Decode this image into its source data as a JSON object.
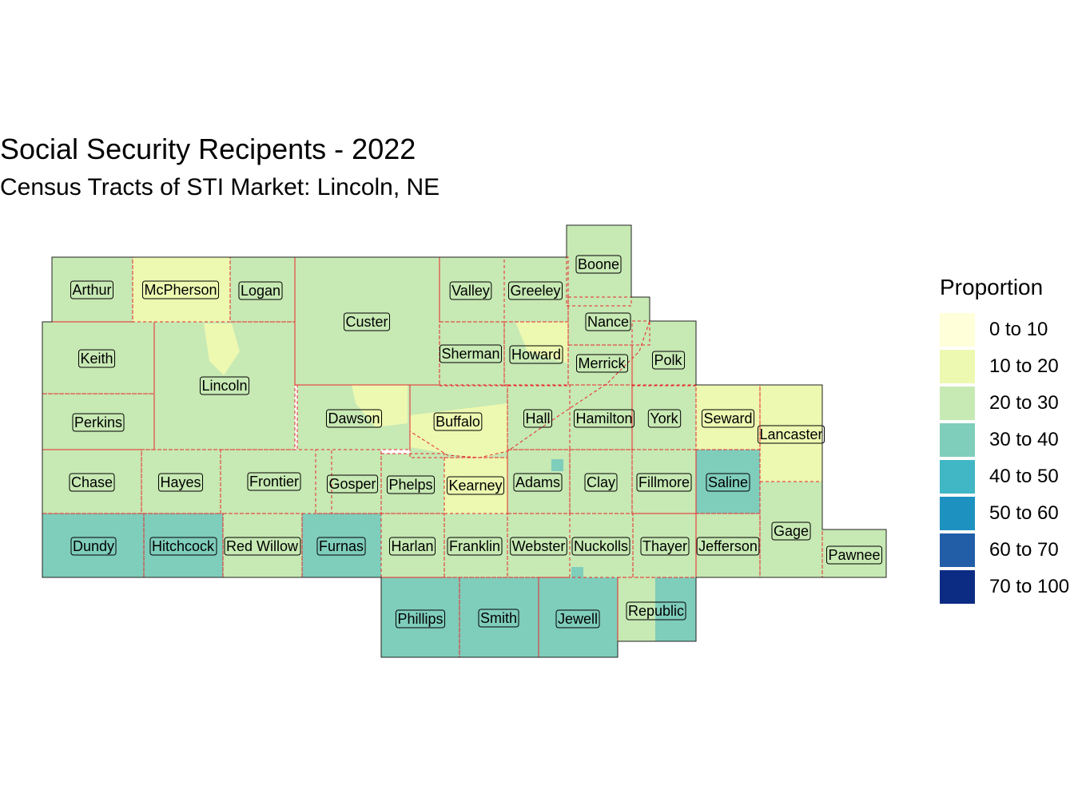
{
  "title": "Social Security Recipents - 2022",
  "subtitle": "Census Tracts of STI Market: Lincoln, NE",
  "legend": {
    "title": "Proportion",
    "classes": [
      {
        "label": "0 to 10",
        "color": "#ffffd9"
      },
      {
        "label": "10 to 20",
        "color": "#edf8b1"
      },
      {
        "label": "20 to 30",
        "color": "#c7e9b4"
      },
      {
        "label": "30 to 40",
        "color": "#7fcdbb"
      },
      {
        "label": "40 to 50",
        "color": "#41b6c4"
      },
      {
        "label": "50 to 60",
        "color": "#1d91c0"
      },
      {
        "label": "60 to 70",
        "color": "#225ea8"
      },
      {
        "label": "70 to 100",
        "color": "#0c2c84"
      }
    ]
  },
  "counties": [
    {
      "name": "Arthur",
      "class": "20 to 30"
    },
    {
      "name": "McPherson",
      "class": "10 to 20"
    },
    {
      "name": "Logan",
      "class": "20 to 30"
    },
    {
      "name": "Custer",
      "class": "20 to 30"
    },
    {
      "name": "Valley",
      "class": "20 to 30"
    },
    {
      "name": "Greeley",
      "class": "20 to 30"
    },
    {
      "name": "Boone",
      "class": "20 to 30"
    },
    {
      "name": "Nance",
      "class": "20 to 30"
    },
    {
      "name": "Keith",
      "class": "20 to 30"
    },
    {
      "name": "Lincoln",
      "class": "20 to 30"
    },
    {
      "name": "Sherman",
      "class": "20 to 30"
    },
    {
      "name": "Howard",
      "class": "20 to 30"
    },
    {
      "name": "Merrick",
      "class": "20 to 30"
    },
    {
      "name": "Polk",
      "class": "20 to 30"
    },
    {
      "name": "Perkins",
      "class": "20 to 30"
    },
    {
      "name": "Dawson",
      "class": "20 to 30"
    },
    {
      "name": "Buffalo",
      "class": "20 to 30"
    },
    {
      "name": "Hall",
      "class": "20 to 30"
    },
    {
      "name": "Hamilton",
      "class": "20 to 30"
    },
    {
      "name": "York",
      "class": "20 to 30"
    },
    {
      "name": "Seward",
      "class": "10 to 20"
    },
    {
      "name": "Lancaster",
      "class": "10 to 20"
    },
    {
      "name": "Chase",
      "class": "20 to 30"
    },
    {
      "name": "Hayes",
      "class": "20 to 30"
    },
    {
      "name": "Frontier",
      "class": "20 to 30"
    },
    {
      "name": "Gosper",
      "class": "20 to 30"
    },
    {
      "name": "Phelps",
      "class": "20 to 30"
    },
    {
      "name": "Kearney",
      "class": "10 to 20"
    },
    {
      "name": "Adams",
      "class": "20 to 30"
    },
    {
      "name": "Clay",
      "class": "20 to 30"
    },
    {
      "name": "Fillmore",
      "class": "20 to 30"
    },
    {
      "name": "Saline",
      "class": "30 to 40"
    },
    {
      "name": "Gage",
      "class": "20 to 30"
    },
    {
      "name": "Dundy",
      "class": "30 to 40"
    },
    {
      "name": "Hitchcock",
      "class": "30 to 40"
    },
    {
      "name": "Red Willow",
      "class": "20 to 30"
    },
    {
      "name": "Furnas",
      "class": "30 to 40"
    },
    {
      "name": "Harlan",
      "class": "20 to 30"
    },
    {
      "name": "Franklin",
      "class": "20 to 30"
    },
    {
      "name": "Webster",
      "class": "20 to 30"
    },
    {
      "name": "Nuckolls",
      "class": "20 to 30"
    },
    {
      "name": "Thayer",
      "class": "20 to 30"
    },
    {
      "name": "Jefferson",
      "class": "20 to 30"
    },
    {
      "name": "Pawnee",
      "class": "20 to 30"
    },
    {
      "name": "Phillips",
      "class": "30 to 40"
    },
    {
      "name": "Smith",
      "class": "30 to 40"
    },
    {
      "name": "Jewell",
      "class": "30 to 40"
    },
    {
      "name": "Republic",
      "class": "20 to 30"
    }
  ]
}
